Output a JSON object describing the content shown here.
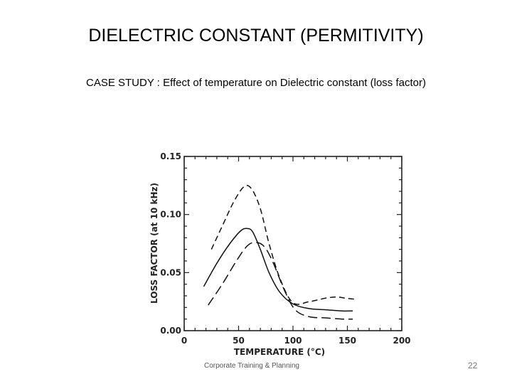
{
  "slide": {
    "title": "DIELECTRIC CONSTANT (PERMITIVITY)",
    "subtitle_lead": "CASE STUDY : ",
    "subtitle_rest": "Effect of  temperature on Dielectric constant  (loss factor)",
    "footer": "Corporate Training & Planning",
    "page_number": "22"
  },
  "chart_data": {
    "type": "line",
    "title": "",
    "xlabel": "TEMPERATURE (°C)",
    "ylabel": "LOSS FACTOR (at 10 kHz)",
    "xlim": [
      0,
      200
    ],
    "ylim": [
      0,
      0.15
    ],
    "xticks": [
      "0",
      "50",
      "100",
      "150",
      "200"
    ],
    "yticks": [
      "0.00",
      "0.05",
      "0.10",
      "0.15"
    ],
    "grid": false,
    "series": [
      {
        "style": "dashed",
        "x": [
          25,
          35,
          45,
          55,
          62,
          70,
          78,
          88,
          100,
          115,
          130,
          140,
          148,
          158
        ],
        "y": [
          0.07,
          0.09,
          0.11,
          0.124,
          0.122,
          0.105,
          0.075,
          0.045,
          0.024,
          0.025,
          0.028,
          0.029,
          0.028,
          0.027
        ]
      },
      {
        "style": "solid",
        "x": [
          18,
          30,
          42,
          52,
          58,
          63,
          70,
          78,
          88,
          100,
          115,
          130,
          145,
          155
        ],
        "y": [
          0.038,
          0.058,
          0.075,
          0.086,
          0.088,
          0.085,
          0.07,
          0.05,
          0.033,
          0.023,
          0.019,
          0.018,
          0.017,
          0.017
        ]
      },
      {
        "style": "long-dash",
        "x": [
          22,
          35,
          48,
          58,
          66,
          74,
          82,
          92,
          102,
          115,
          130,
          145,
          155
        ],
        "y": [
          0.022,
          0.04,
          0.06,
          0.073,
          0.076,
          0.072,
          0.058,
          0.035,
          0.018,
          0.012,
          0.011,
          0.01,
          0.01
        ]
      }
    ]
  }
}
